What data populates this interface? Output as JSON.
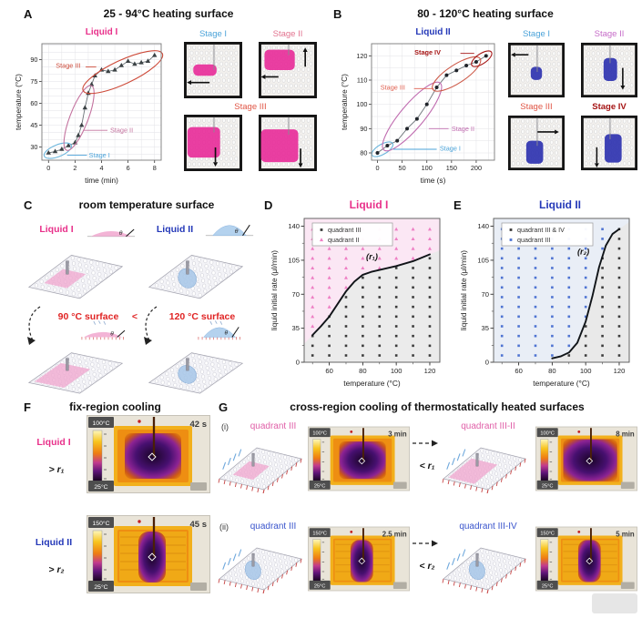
{
  "colors": {
    "liquid1": "#e8308a",
    "liquid2": "#2438b8",
    "stage1": "#4ba3d9",
    "stage2_a": "#e2738f",
    "stage2_b": "#c66cc8",
    "stage3": "#e05545",
    "stage4": "#a51414",
    "red": "#e02424",
    "quad_pink": "#e060a8",
    "quad_blue": "#3a55cc"
  },
  "panelA": {
    "label": "A",
    "title": "25 - 94°C heating surface",
    "photo_labels": {
      "stage1": "Stage I",
      "stage2": "Stage II",
      "stage3": "Stage III"
    }
  },
  "panelB": {
    "label": "B",
    "title": "80 - 120°C heating surface",
    "photo_labels": {
      "stage1": "Stage I",
      "stage2": "Stage II",
      "stage3": "Stage III",
      "stage4": "Stage IV"
    }
  },
  "panelC": {
    "label": "C",
    "title": "room temperature surface",
    "liquid1": "Liquid I",
    "liquid2": "Liquid II",
    "t90": "90 °C surface",
    "lt": "<",
    "t120": "120 °C surface",
    "droplets": {
      "d1": {
        "type": "pink",
        "heated": false,
        "label": "θ"
      },
      "d2": {
        "type": "blue",
        "heated": false,
        "label": "θ"
      },
      "d3": {
        "type": "pink",
        "heated": true,
        "label": "θ"
      },
      "d4": {
        "type": "blue",
        "heated": true,
        "label": "θ"
      }
    }
  },
  "panelD": {
    "label": "D",
    "title": "Liquid I"
  },
  "panelE": {
    "label": "E",
    "title": "Liquid II"
  },
  "panelF": {
    "label": "F",
    "title": "fix-region cooling",
    "row1": {
      "liquid": "Liquid I",
      "rate": "> r₁",
      "thermal": {
        "tmax": "100°C",
        "tmin": "25°C",
        "time": "42 s",
        "core": "square"
      }
    },
    "row2": {
      "liquid": "Liquid II",
      "rate": "> r₂",
      "thermal": {
        "tmax": "150°C",
        "tmin": "25°C",
        "time": "45 s",
        "core": "tall"
      }
    }
  },
  "panelG": {
    "label": "G",
    "title": "cross-region cooling of thermostatically heated surfaces",
    "row1": {
      "index": "(i)",
      "quadrant_left": "quadrant III",
      "rate": "< r₁",
      "quadrant_right": "quadrant III-II",
      "thermal_left": {
        "tmax": "100°C",
        "tmin": "25°C",
        "time": "3 min",
        "core": "square"
      },
      "thermal_right": {
        "tmax": "100°C",
        "tmin": "25°C",
        "time": "8 min",
        "core": "wide"
      }
    },
    "row2": {
      "index": "(ii)",
      "quadrant_left": "quadrant III",
      "rate": "< r₂",
      "quadrant_right": "quadrant III-IV",
      "thermal_left": {
        "tmax": "150°C",
        "tmin": "25°C",
        "time": "2.5 min",
        "core": "tall"
      },
      "thermal_right": {
        "tmax": "150°C",
        "tmin": "25°C",
        "time": "5 min",
        "core": "tall"
      }
    }
  },
  "surfaces": {
    "c_tl": {
      "patch": "rect",
      "color": "pink",
      "hatch": false,
      "rain": false
    },
    "c_tr": {
      "patch": "blob",
      "color": "blue",
      "hatch": false,
      "rain": false
    },
    "c_bl": {
      "patch": "rect-large",
      "color": "pink",
      "hatch": false,
      "rain": false
    },
    "c_br": {
      "patch": "blob",
      "color": "blue",
      "hatch": false,
      "rain": false
    },
    "g1l": {
      "patch": "rect",
      "color": "pink",
      "hatch": true,
      "rain": true
    },
    "g1r": {
      "patch": "rect-large",
      "color": "pink",
      "hatch": true,
      "rain": true
    },
    "g2l": {
      "patch": "blob",
      "color": "blue",
      "hatch": true,
      "rain": true
    },
    "g2r": {
      "patch": "blob",
      "color": "blue",
      "hatch": true,
      "rain": true
    }
  },
  "stage_tiles": {
    "A": {
      "color": "#e82a98",
      "tiles": [
        {
          "blob": [
            0.16,
            0.4,
            0.4,
            0.2
          ],
          "arrows": [
            [
              0.44,
              0.72,
              0.05,
              0.72
            ]
          ]
        },
        {
          "blob": [
            0.1,
            0.14,
            0.52,
            0.36
          ],
          "arrows": [
            [
              0.34,
              0.62,
              0.04,
              0.62
            ],
            [
              0.8,
              0.44,
              0.8,
              0.1
            ]
          ]
        },
        {
          "blob": [
            0.06,
            0.22,
            0.56,
            0.54
          ],
          "arrows": [
            [
              0.54,
              0.58,
              0.54,
              0.92
            ]
          ]
        },
        {
          "blob": [
            0.04,
            0.26,
            0.64,
            0.58
          ],
          "arrows": [
            [
              0.72,
              0.6,
              0.72,
              0.94
            ]
          ]
        }
      ]
    },
    "B": {
      "color": "#2a2fae",
      "tiles": [
        {
          "blob": [
            0.4,
            0.44,
            0.2,
            0.24
          ],
          "arrows": [
            [
              0.36,
              0.22,
              0.05,
              0.22
            ]
          ]
        },
        {
          "blob": [
            0.4,
            0.28,
            0.24,
            0.42
          ],
          "arrows": [
            [
              0.74,
              0.46,
              0.74,
              0.86
            ]
          ]
        },
        {
          "blob": [
            0.32,
            0.46,
            0.3,
            0.42
          ],
          "arrows": [
            [
              0.52,
              0.3,
              0.9,
              0.3
            ]
          ]
        },
        {
          "blob": [
            0.42,
            0.34,
            0.3,
            0.52
          ],
          "arrows": [
            [
              0.28,
              0.58,
              0.28,
              0.95
            ]
          ]
        }
      ]
    }
  },
  "chart_data": [
    {
      "id": "A",
      "type": "line",
      "title": "Liquid I",
      "title_color": "#e8308a",
      "xlabel": "time (min)",
      "ylabel": "temperature (°C)",
      "xlim": [
        -0.5,
        8.5
      ],
      "ylim": [
        21,
        101
      ],
      "xticks": [
        0,
        2,
        4,
        6,
        8
      ],
      "yticks": [
        30,
        45,
        60,
        75,
        90
      ],
      "grid_step_x": 1,
      "grid_step_y": 5,
      "marker": "triangle",
      "x": [
        0,
        0.5,
        1,
        1.5,
        2,
        2.25,
        2.5,
        2.75,
        3,
        3.25,
        3.5,
        4,
        4.5,
        5,
        5.5,
        6,
        6.5,
        7,
        7.5,
        8
      ],
      "y": [
        26,
        27,
        28.5,
        31,
        33,
        38,
        45,
        57,
        67,
        73,
        79,
        83,
        82,
        83,
        86,
        89,
        87,
        88,
        89,
        93
      ],
      "stage_ellipses": [
        {
          "cx": 0.7,
          "cy": 27.5,
          "rx": 16,
          "ry": 6.5,
          "rot": -22,
          "color": "#6cb6dc"
        },
        {
          "cx": 2.3,
          "cy": 50,
          "rx": 10,
          "ry": 38,
          "rot": 21,
          "color": "#c4739f"
        },
        {
          "cx": 5.6,
          "cy": 81.5,
          "rx": 48,
          "ry": 13,
          "rot": -25,
          "color": "#cd4a39"
        }
      ],
      "stage_labels": [
        {
          "text": "Stage III",
          "x": 0.55,
          "y": 86,
          "color": "#cd4a39",
          "bold": false,
          "line": [
            2.8,
            85,
            3.6,
            85
          ]
        },
        {
          "text": "Stage II",
          "x": 4.65,
          "y": 41.5,
          "color": "#c4739f",
          "bold": false,
          "line": [
            2.62,
            41.5,
            4.45,
            41.5
          ]
        },
        {
          "text": "Stage I",
          "x": 3.05,
          "y": 24.5,
          "color": "#4ba3d9",
          "bold": false,
          "line": [
            1.4,
            24.5,
            2.9,
            24.5
          ]
        }
      ]
    },
    {
      "id": "B",
      "type": "line",
      "title": "Liquid II",
      "title_color": "#2438b8",
      "xlabel": "time (s)",
      "ylabel": "temperature (°C)",
      "xlim": [
        -12,
        237
      ],
      "ylim": [
        77,
        125
      ],
      "xticks": [
        0,
        50,
        100,
        150,
        200
      ],
      "yticks": [
        80,
        90,
        100,
        110,
        120
      ],
      "grid_step_x": 25,
      "grid_step_y": 5,
      "marker": "circle",
      "x": [
        0,
        20,
        40,
        60,
        80,
        100,
        120,
        140,
        160,
        180,
        200,
        220
      ],
      "y": [
        80,
        83,
        85,
        90,
        94,
        100,
        107,
        112,
        114,
        116,
        117.5,
        120
      ],
      "stage_ellipses": [
        {
          "cx": 10,
          "cy": 81.5,
          "rx": 13,
          "ry": 5.5,
          "rot": -30,
          "color": "#6cb6dc"
        },
        {
          "cx": 70,
          "cy": 95,
          "rx": 13,
          "ry": 48,
          "rot": 40,
          "color": "#c06cb0"
        },
        {
          "cx": 160,
          "cy": 112.5,
          "rx": 31,
          "ry": 10,
          "rot": -33,
          "color": "#cd5a49"
        },
        {
          "cx": 211,
          "cy": 118.8,
          "rx": 13,
          "ry": 5.5,
          "rot": -34,
          "color": "#a51414"
        }
      ],
      "stage_labels": [
        {
          "text": "Stage IV",
          "x": 75,
          "y": 121.5,
          "color": "#a51414",
          "bold": true,
          "line": [
            168,
            121,
            196,
            121
          ]
        },
        {
          "text": "Stage III",
          "x": 6,
          "y": 107,
          "color": "#e06050",
          "bold": false,
          "line": [
            74,
            106.5,
            114,
            106.5
          ]
        },
        {
          "text": "Stage II",
          "x": 150,
          "y": 90,
          "color": "#c06cb0",
          "bold": false,
          "line": [
            104,
            90,
            144,
            90
          ]
        },
        {
          "text": "Stage I",
          "x": 126,
          "y": 81.8,
          "color": "#4ba3d9",
          "bold": false,
          "line": [
            32,
            81.5,
            120,
            81.5
          ]
        }
      ]
    },
    {
      "id": "D",
      "type": "scatter-region",
      "xlabel": "temperature (°C)",
      "ylabel": "liquid initial rate (μl/min)",
      "xlim": [
        45,
        126
      ],
      "ylim": [
        0,
        148
      ],
      "xticks": [
        60,
        80,
        100,
        120
      ],
      "yticks": [
        0,
        35,
        70,
        105,
        140
      ],
      "minor_x": 10,
      "minor_y": 17.5,
      "curve_x": [
        50,
        55,
        60,
        65,
        70,
        75,
        80,
        85,
        90,
        100,
        110,
        120
      ],
      "curve_y": [
        28,
        37,
        47,
        60,
        73,
        83,
        90,
        93,
        95,
        99,
        104,
        111
      ],
      "curve_label": "(r₁)",
      "curve_label_pos": [
        82,
        106
      ],
      "grid_x": [
        50,
        60,
        70,
        80,
        90,
        100,
        110,
        120
      ],
      "grid_y": [
        7,
        17,
        27,
        37,
        47,
        57,
        67,
        77,
        87,
        97,
        107,
        117,
        127,
        137
      ],
      "blue_left_of_curve": false,
      "above_marker": {
        "shape": "triangle",
        "color": "#ee7fc4"
      },
      "below_marker": {
        "shape": "square",
        "color": "#3c3c3c"
      },
      "bg_above": "#fbe7f4",
      "bg_below": "#ebebeb",
      "legend": {
        "w": 88,
        "items": [
          {
            "shape": "square",
            "color": "#3c3c3c",
            "label": "quadrant III"
          },
          {
            "shape": "triangle",
            "color": "#ee7fc4",
            "label": "quadrant II"
          }
        ]
      }
    },
    {
      "id": "E",
      "type": "scatter-region",
      "xlabel": "temperature (°C)",
      "ylabel": "liquid initial rate (μl/min)",
      "xlim": [
        45,
        126
      ],
      "ylim": [
        0,
        148
      ],
      "xticks": [
        60,
        80,
        100,
        120
      ],
      "yticks": [
        0,
        35,
        70,
        105,
        140
      ],
      "minor_x": 10,
      "minor_y": 17.5,
      "curve_x": [
        80,
        85,
        90,
        95,
        100,
        104,
        108,
        112,
        116,
        120
      ],
      "curve_y": [
        4,
        6,
        10,
        20,
        42,
        68,
        98,
        120,
        132,
        137
      ],
      "curve_label": "(r₂)",
      "curve_label_pos": [
        95,
        111
      ],
      "grid_x": [
        50,
        60,
        70,
        80,
        90,
        100,
        110,
        120
      ],
      "grid_y": [
        7,
        17,
        27,
        37,
        47,
        57,
        67,
        77,
        87,
        97,
        107,
        117,
        127,
        137
      ],
      "blue_left_of_curve": true,
      "above_marker": {
        "shape": "square",
        "color": "#4f74d2"
      },
      "below_marker": {
        "shape": "square",
        "color": "#3c3c3c"
      },
      "bg_above": "#e9eef6",
      "bg_below": "#e9e9e9",
      "legend": {
        "w": 100,
        "items": [
          {
            "shape": "square",
            "color": "#3c3c3c",
            "label": "quadrant III & IV"
          },
          {
            "shape": "square",
            "color": "#4f74d2",
            "label": "quadrant III"
          }
        ]
      }
    }
  ]
}
